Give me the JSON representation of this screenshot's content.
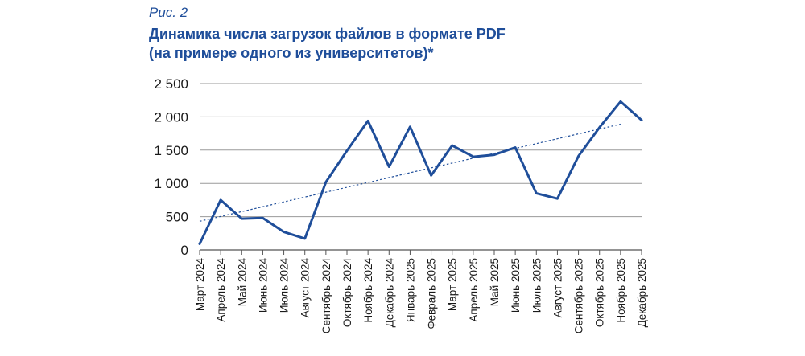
{
  "figure_label": "Рис. 2",
  "chart_data": {
    "type": "line",
    "title_line1": "Динамика числа загрузок файлов в формате PDF",
    "title_line2": "(на примере одного из университетов)*",
    "xlabel": "",
    "ylabel": "",
    "ylim": [
      0,
      2500
    ],
    "yticks": [
      0,
      500,
      1000,
      1500,
      2000,
      2500
    ],
    "ytick_labels": [
      "0",
      "500",
      "1 000",
      "1 500",
      "2 000",
      "2 500"
    ],
    "grid": true,
    "categories": [
      "Март 2024",
      "Апрель 2024",
      "Май 2024",
      "Июнь 2024",
      "Июль 2024",
      "Август 2024",
      "Сентябрь 2024",
      "Октябрь 2024",
      "Ноябрь 2024",
      "Декабрь 2024",
      "Январь 2025",
      "Февраль 2025",
      "Март 2025",
      "Апрель 2025",
      "Май 2025",
      "Июнь 2025",
      "Июль 2025",
      "Август 2025",
      "Сентябрь 2025",
      "Октябрь 2025",
      "Ноябрь 2025",
      "Декабрь 2025"
    ],
    "series": [
      {
        "values": [
          90,
          750,
          470,
          480,
          270,
          170,
          1020,
          1490,
          1940,
          1250,
          1850,
          1120,
          1570,
          1400,
          1430,
          1540,
          850,
          770,
          1410,
          1840,
          2230,
          1950
        ],
        "color": "#1f4e9a"
      }
    ],
    "trendline": {
      "style": "dotted",
      "start": 430,
      "end": 1890,
      "color": "#1f4e9a"
    }
  }
}
